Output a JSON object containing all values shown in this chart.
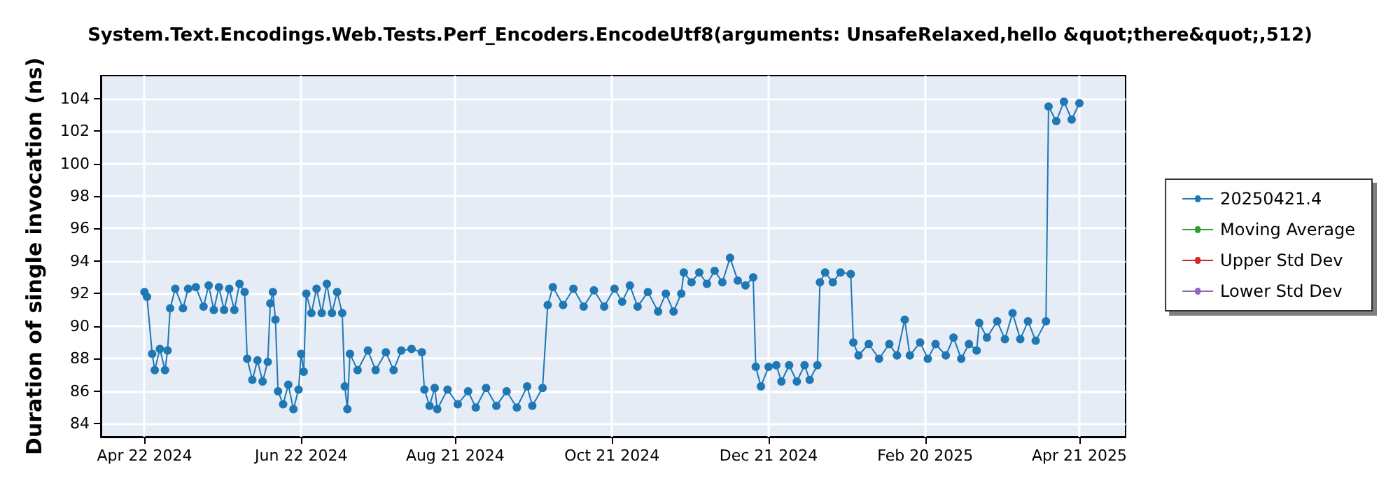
{
  "chart_data": {
    "type": "line",
    "title": "System.Text.Encodings.Web.Tests.Perf_Encoders.EncodeUtf8(arguments: UnsafeRelaxed,hello &quot;there&quot;,512)",
    "ylabel": "Duration of single invocation (ns)",
    "x": [
      "2024-04-22",
      "2024-04-23",
      "2024-04-25",
      "2024-04-26",
      "2024-04-28",
      "2024-04-30",
      "2024-05-01",
      "2024-05-02",
      "2024-05-04",
      "2024-05-07",
      "2024-05-09",
      "2024-05-12",
      "2024-05-15",
      "2024-05-17",
      "2024-05-19",
      "2024-05-21",
      "2024-05-23",
      "2024-05-25",
      "2024-05-27",
      "2024-05-29",
      "2024-05-31",
      "2024-06-01",
      "2024-06-03",
      "2024-06-05",
      "2024-06-07",
      "2024-06-09",
      "2024-06-10",
      "2024-06-11",
      "2024-06-12",
      "2024-06-13",
      "2024-06-15",
      "2024-06-17",
      "2024-06-19",
      "2024-06-21",
      "2024-06-22",
      "2024-06-23",
      "2024-06-24",
      "2024-06-26",
      "2024-06-28",
      "2024-06-30",
      "2024-07-02",
      "2024-07-04",
      "2024-07-06",
      "2024-07-08",
      "2024-07-09",
      "2024-07-10",
      "2024-07-11",
      "2024-07-14",
      "2024-07-18",
      "2024-07-21",
      "2024-07-25",
      "2024-07-28",
      "2024-07-31",
      "2024-08-04",
      "2024-08-08",
      "2024-08-09",
      "2024-08-11",
      "2024-08-13",
      "2024-08-14",
      "2024-08-18",
      "2024-08-22",
      "2024-08-26",
      "2024-08-29",
      "2024-09-02",
      "2024-09-06",
      "2024-09-10",
      "2024-09-14",
      "2024-09-18",
      "2024-09-20",
      "2024-09-24",
      "2024-09-26",
      "2024-09-28",
      "2024-10-02",
      "2024-10-06",
      "2024-10-10",
      "2024-10-14",
      "2024-10-18",
      "2024-10-22",
      "2024-10-25",
      "2024-10-28",
      "2024-10-31",
      "2024-11-04",
      "2024-11-08",
      "2024-11-11",
      "2024-11-14",
      "2024-11-17",
      "2024-11-18",
      "2024-11-21",
      "2024-11-24",
      "2024-11-27",
      "2024-11-30",
      "2024-12-03",
      "2024-12-06",
      "2024-12-09",
      "2024-12-12",
      "2024-12-15",
      "2024-12-16",
      "2024-12-18",
      "2024-12-21",
      "2024-12-24",
      "2024-12-26",
      "2024-12-29",
      "2025-01-01",
      "2025-01-04",
      "2025-01-06",
      "2025-01-09",
      "2025-01-10",
      "2025-01-12",
      "2025-01-15",
      "2025-01-18",
      "2025-01-22",
      "2025-01-23",
      "2025-01-25",
      "2025-01-29",
      "2025-02-02",
      "2025-02-06",
      "2025-02-09",
      "2025-02-12",
      "2025-02-14",
      "2025-02-18",
      "2025-02-21",
      "2025-02-24",
      "2025-02-28",
      "2025-03-03",
      "2025-03-06",
      "2025-03-09",
      "2025-03-12",
      "2025-03-13",
      "2025-03-16",
      "2025-03-20",
      "2025-03-23",
      "2025-03-26",
      "2025-03-29",
      "2025-04-01",
      "2025-04-04",
      "2025-04-08",
      "2025-04-09",
      "2025-04-12",
      "2025-04-15",
      "2025-04-18",
      "2025-04-21"
    ],
    "series": [
      {
        "name": "20250421.4",
        "color": "#1f77b4",
        "values": [
          92.1,
          91.8,
          88.3,
          87.3,
          88.6,
          87.3,
          88.5,
          91.1,
          92.3,
          91.1,
          92.3,
          92.4,
          91.2,
          92.5,
          91.0,
          92.4,
          91.0,
          92.3,
          91.0,
          92.6,
          92.1,
          88.0,
          86.7,
          87.9,
          86.6,
          87.8,
          91.4,
          92.1,
          90.4,
          86.0,
          85.2,
          86.4,
          84.9,
          86.1,
          88.3,
          87.2,
          92.0,
          90.8,
          92.3,
          90.8,
          92.6,
          90.8,
          92.1,
          90.8,
          86.3,
          84.9,
          88.3,
          87.3,
          88.5,
          87.3,
          88.4,
          87.3,
          88.5,
          88.6,
          88.4,
          86.1,
          85.1,
          86.2,
          84.9,
          86.1,
          85.2,
          86.0,
          85.0,
          86.2,
          85.1,
          86.0,
          85.0,
          86.3,
          85.1,
          86.2,
          91.3,
          92.4,
          91.3,
          92.3,
          91.2,
          92.2,
          91.2,
          92.3,
          91.5,
          92.5,
          91.2,
          92.1,
          90.9,
          92.0,
          90.9,
          92.0,
          93.3,
          92.7,
          93.3,
          92.6,
          93.4,
          92.7,
          94.2,
          92.8,
          92.5,
          93.0,
          87.5,
          86.3,
          87.5,
          87.6,
          86.6,
          87.6,
          86.6,
          87.6,
          86.7,
          87.6,
          92.7,
          93.3,
          92.7,
          93.3,
          93.2,
          89.0,
          88.2,
          88.9,
          88.0,
          88.9,
          88.2,
          90.4,
          88.2,
          89.0,
          88.0,
          88.9,
          88.2,
          89.3,
          88.0,
          88.9,
          88.5,
          90.2,
          89.3,
          90.3,
          89.2,
          90.8,
          89.2,
          90.3,
          89.1,
          90.3,
          103.5,
          102.6,
          103.8,
          102.7,
          103.7
        ]
      },
      {
        "name": "Moving Average",
        "color": "#2ca02c",
        "values": [
          null,
          null,
          null,
          null,
          null,
          null,
          null,
          null,
          null,
          null,
          null,
          null,
          null,
          null,
          null,
          null,
          null,
          null,
          null,
          null,
          null,
          null,
          null,
          null,
          null,
          null,
          null,
          null,
          null,
          null,
          null,
          null,
          null,
          null,
          null,
          null,
          null,
          null,
          null,
          null,
          null,
          null,
          null,
          null,
          null,
          null,
          null,
          null,
          null,
          null,
          null,
          null,
          null,
          null,
          null,
          null,
          null,
          null,
          null,
          null,
          null,
          null,
          null,
          null,
          null,
          null,
          null,
          null,
          null,
          null,
          null,
          null,
          null,
          null,
          null,
          null,
          null,
          null,
          null,
          null,
          null,
          null,
          null,
          null,
          null,
          null,
          null,
          null,
          null,
          null,
          null,
          null,
          null,
          null,
          null,
          null,
          null,
          null,
          null,
          null,
          null,
          null,
          null,
          null,
          null,
          null,
          null,
          null,
          null,
          null,
          null,
          null,
          null,
          null,
          null,
          null,
          null,
          null,
          null,
          null,
          null,
          null,
          null,
          null,
          null,
          null,
          null,
          null,
          null,
          null,
          null,
          null,
          null,
          null,
          null,
          null,
          null,
          null,
          null,
          null,
          null
        ]
      },
      {
        "name": "Upper Std Dev",
        "color": "#d62728",
        "values": [
          null,
          null,
          null,
          null,
          null,
          null,
          null,
          null,
          null,
          null,
          null,
          null,
          null,
          null,
          null,
          null,
          null,
          null,
          null,
          null,
          null,
          null,
          null,
          null,
          null,
          null,
          null,
          null,
          null,
          null,
          null,
          null,
          null,
          null,
          null,
          null,
          null,
          null,
          null,
          null,
          null,
          null,
          null,
          null,
          null,
          null,
          null,
          null,
          null,
          null,
          null,
          null,
          null,
          null,
          null,
          null,
          null,
          null,
          null,
          null,
          null,
          null,
          null,
          null,
          null,
          null,
          null,
          null,
          null,
          null,
          null,
          null,
          null,
          null,
          null,
          null,
          null,
          null,
          null,
          null,
          null,
          null,
          null,
          null,
          null,
          null,
          null,
          null,
          null,
          null,
          null,
          null,
          null,
          null,
          null,
          null,
          null,
          null,
          null,
          null,
          null,
          null,
          null,
          null,
          null,
          null,
          null,
          null,
          null,
          null,
          null,
          null,
          null,
          null,
          null,
          null,
          null,
          null,
          null,
          null,
          null,
          null,
          null,
          null,
          null,
          null,
          null,
          null,
          null,
          null,
          null,
          null,
          null,
          null,
          null,
          null,
          null,
          null,
          null,
          null,
          null
        ]
      },
      {
        "name": "Lower Std Dev",
        "color": "#9467bd",
        "values": [
          null,
          null,
          null,
          null,
          null,
          null,
          null,
          null,
          null,
          null,
          null,
          null,
          null,
          null,
          null,
          null,
          null,
          null,
          null,
          null,
          null,
          null,
          null,
          null,
          null,
          null,
          null,
          null,
          null,
          null,
          null,
          null,
          null,
          null,
          null,
          null,
          null,
          null,
          null,
          null,
          null,
          null,
          null,
          null,
          null,
          null,
          null,
          null,
          null,
          null,
          null,
          null,
          null,
          null,
          null,
          null,
          null,
          null,
          null,
          null,
          null,
          null,
          null,
          null,
          null,
          null,
          null,
          null,
          null,
          null,
          null,
          null,
          null,
          null,
          null,
          null,
          null,
          null,
          null,
          null,
          null,
          null,
          null,
          null,
          null,
          null,
          null,
          null,
          null,
          null,
          null,
          null,
          null,
          null,
          null,
          null,
          null,
          null,
          null,
          null,
          null,
          null,
          null,
          null,
          null,
          null,
          null,
          null,
          null,
          null,
          null,
          null,
          null,
          null,
          null,
          null,
          null,
          null,
          null,
          null,
          null,
          null,
          null,
          null,
          null,
          null,
          null,
          null,
          null,
          null,
          null,
          null,
          null,
          null,
          null,
          null,
          null,
          null,
          null,
          null,
          null
        ]
      }
    ],
    "xlim": [
      "2024-04-05",
      "2025-05-09"
    ],
    "xticks": [
      {
        "value": "2024-04-22",
        "label": "Apr 22 2024"
      },
      {
        "value": "2024-06-22",
        "label": "Jun 22 2024"
      },
      {
        "value": "2024-08-21",
        "label": "Aug 21 2024"
      },
      {
        "value": "2024-10-21",
        "label": "Oct 21 2024"
      },
      {
        "value": "2024-12-21",
        "label": "Dec 21 2024"
      },
      {
        "value": "2025-02-20",
        "label": "Feb 20 2025"
      },
      {
        "value": "2025-04-21",
        "label": "Apr 21 2025"
      }
    ],
    "ylim": [
      83.2,
      105.4
    ],
    "yticks": [
      84,
      86,
      88,
      90,
      92,
      94,
      96,
      98,
      100,
      102,
      104
    ],
    "grid": true,
    "legend": "right",
    "marker": "circle",
    "line_style": "solid"
  }
}
